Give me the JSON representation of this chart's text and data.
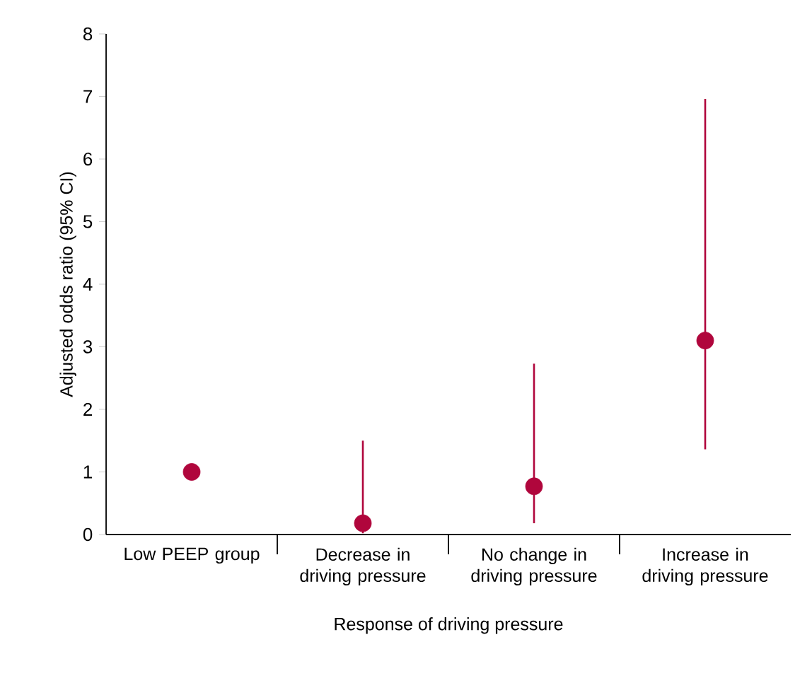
{
  "chart_data": {
    "type": "scatter",
    "xlabel": "Response of driving pressure",
    "ylabel": "Adjusted odds ratio (95% CI)",
    "categories": [
      "Low PEEP group",
      "Decrease in driving pressure",
      "No change in driving pressure",
      "Increase in driving pressure"
    ],
    "ylim": [
      0,
      8
    ],
    "yticks": [
      0,
      1,
      2,
      3,
      4,
      5,
      6,
      7,
      8
    ],
    "marker": "circle",
    "series": [
      {
        "color": "#b0063c",
        "values": [
          1.0,
          0.18,
          0.77,
          3.1
        ],
        "errors": [
          null,
          [
            0.02,
            1.5
          ],
          [
            0.18,
            2.73
          ],
          [
            1.36,
            6.96
          ]
        ]
      }
    ]
  }
}
